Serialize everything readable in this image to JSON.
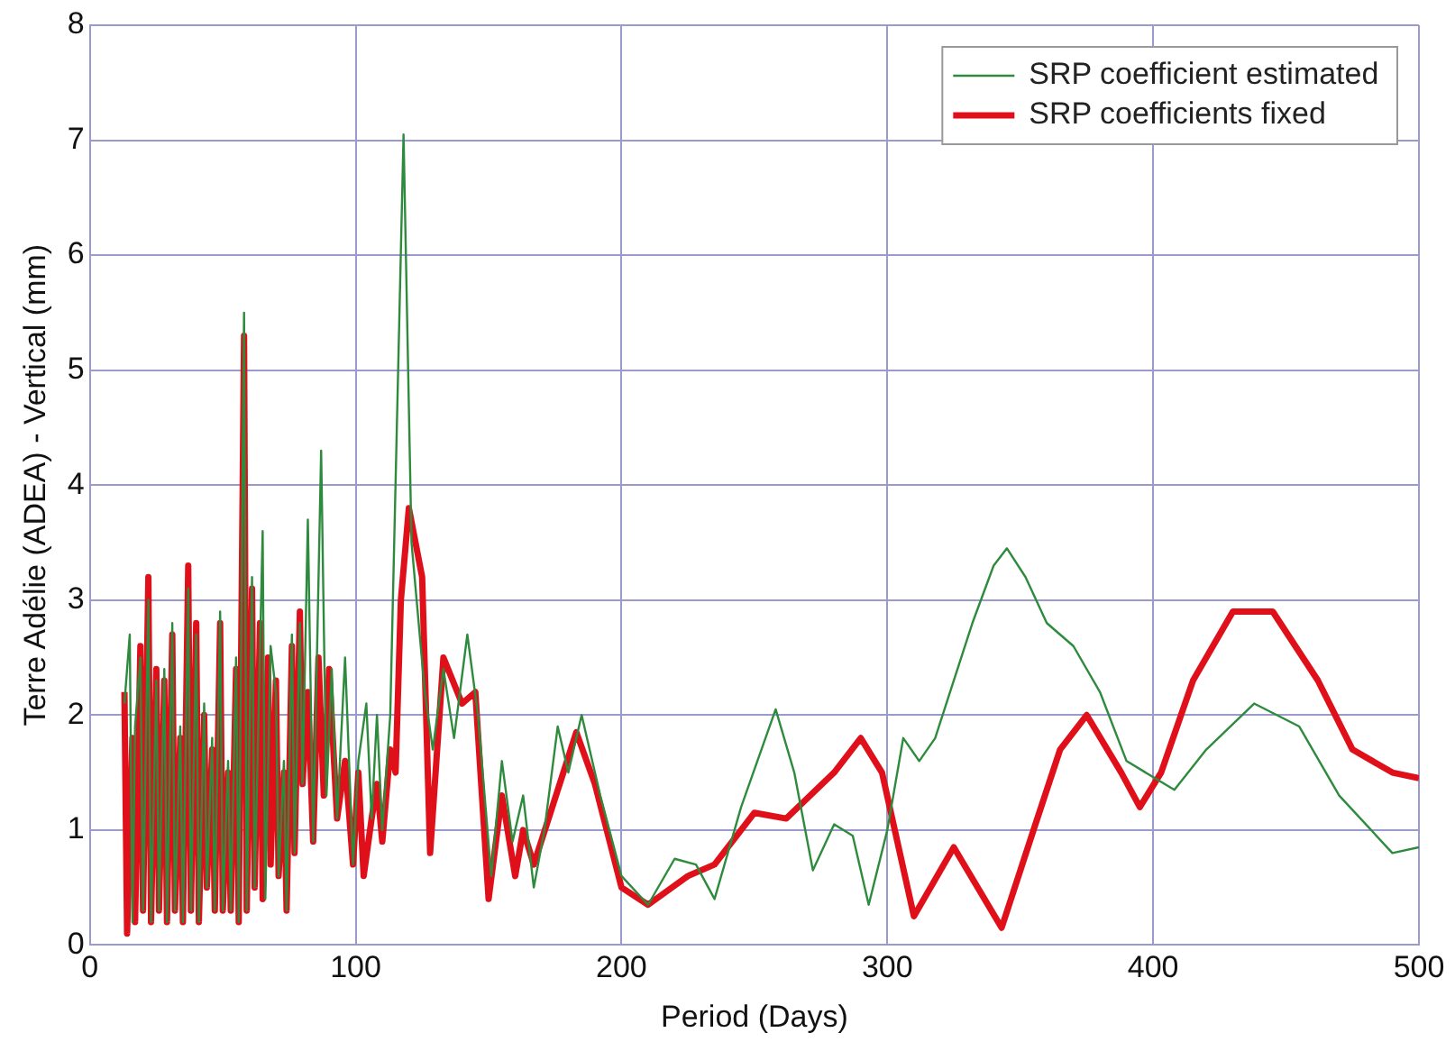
{
  "chart_data": {
    "type": "line",
    "xlabel": "Period (Days)",
    "ylabel": "Terre Adélie (ADEA) - Vertical (mm)",
    "xlim": [
      0,
      500
    ],
    "xticks": [
      0,
      100,
      200,
      300,
      400,
      500
    ],
    "ylim": [
      0,
      8
    ],
    "yticks": [
      0,
      1,
      2,
      3,
      4,
      5,
      6,
      7,
      8
    ],
    "grid": true,
    "legend": "top right",
    "marker": "none",
    "line_style": "solid",
    "series": [
      {
        "name": "SRP coefficient estimated",
        "color": "#2e8b3e",
        "x": [
          13,
          15,
          16,
          17,
          19,
          20,
          22,
          23,
          25,
          26,
          28,
          29,
          31,
          32,
          34,
          35,
          37,
          38,
          40,
          41,
          43,
          44,
          46,
          47,
          49,
          50,
          52,
          53,
          55,
          56,
          58,
          59,
          61,
          62,
          65,
          66,
          68,
          70,
          71,
          73,
          74,
          76,
          77,
          79,
          80,
          82,
          84,
          87,
          89,
          91,
          93,
          96,
          99,
          101,
          104,
          106,
          108,
          110,
          113,
          118,
          121,
          126,
          129,
          133,
          137,
          142,
          146,
          151,
          155,
          159,
          163,
          167,
          171,
          176,
          180,
          185,
          192,
          200,
          210,
          220,
          228,
          235,
          245,
          258,
          265,
          272,
          280,
          287,
          293,
          300,
          306,
          312,
          318,
          332,
          340,
          345,
          352,
          360,
          370,
          380,
          390,
          408,
          420,
          438,
          455,
          470,
          490,
          500
        ],
        "values": [
          2.1,
          2.7,
          0.2,
          1.9,
          2.5,
          0.3,
          3.0,
          0.2,
          2.3,
          0.3,
          2.4,
          0.2,
          2.8,
          0.3,
          1.9,
          0.2,
          3.1,
          0.3,
          2.7,
          0.2,
          2.1,
          0.5,
          1.8,
          0.3,
          2.9,
          0.3,
          1.6,
          0.3,
          2.5,
          0.2,
          5.5,
          0.3,
          3.2,
          0.5,
          3.6,
          0.4,
          2.6,
          2.2,
          0.6,
          1.6,
          0.3,
          2.7,
          0.8,
          2.8,
          1.4,
          3.7,
          0.9,
          4.3,
          1.3,
          2.4,
          1.1,
          2.5,
          0.7,
          1.6,
          2.1,
          1.1,
          2.0,
          1.0,
          2.0,
          7.05,
          3.5,
          2.2,
          1.7,
          2.4,
          1.8,
          2.7,
          2.0,
          0.6,
          1.6,
          0.9,
          1.3,
          0.5,
          1.0,
          1.9,
          1.5,
          2.0,
          1.3,
          0.6,
          0.35,
          0.75,
          0.7,
          0.4,
          1.2,
          2.05,
          1.5,
          0.65,
          1.05,
          0.95,
          0.35,
          1.0,
          1.8,
          1.6,
          1.8,
          2.8,
          3.3,
          3.45,
          3.2,
          2.8,
          2.6,
          2.2,
          1.6,
          1.35,
          1.7,
          2.1,
          1.9,
          1.3,
          0.8,
          0.85
        ]
      },
      {
        "name": "SRP coefficients fixed",
        "color": "#e0101a",
        "x": [
          13,
          14,
          16,
          17,
          19,
          20,
          22,
          23,
          25,
          26,
          28,
          29,
          31,
          32,
          34,
          35,
          37,
          38,
          40,
          41,
          43,
          44,
          46,
          47,
          49,
          50,
          52,
          53,
          55,
          56,
          58,
          59,
          61,
          62,
          64,
          65,
          67,
          68,
          70,
          71,
          73,
          74,
          76,
          77,
          79,
          80,
          82,
          84,
          86,
          88,
          90,
          93,
          96,
          99,
          101,
          103,
          106,
          108,
          110,
          113,
          115,
          117,
          120,
          125,
          128,
          133,
          140,
          145,
          150,
          155,
          160,
          163,
          167,
          183,
          190,
          200,
          210,
          225,
          235,
          250,
          262,
          280,
          290,
          298,
          310,
          325,
          343,
          355,
          365,
          375,
          388,
          395,
          403,
          415,
          430,
          445,
          462,
          475,
          490,
          500
        ],
        "values": [
          2.2,
          0.1,
          1.8,
          0.2,
          2.6,
          0.3,
          3.2,
          0.2,
          2.4,
          0.3,
          2.3,
          0.2,
          2.7,
          0.3,
          1.8,
          0.2,
          3.3,
          0.3,
          2.8,
          0.2,
          2.0,
          0.5,
          1.7,
          0.3,
          2.8,
          0.3,
          1.5,
          0.3,
          2.4,
          0.2,
          5.3,
          0.3,
          3.1,
          0.5,
          2.8,
          0.4,
          2.5,
          0.7,
          2.3,
          0.6,
          1.5,
          0.3,
          2.6,
          0.8,
          2.9,
          1.4,
          2.2,
          0.9,
          2.5,
          1.3,
          2.4,
          1.1,
          1.6,
          0.7,
          1.5,
          0.6,
          1.1,
          1.4,
          0.9,
          1.7,
          1.5,
          3.0,
          3.8,
          3.2,
          0.8,
          2.5,
          2.1,
          2.2,
          0.4,
          1.3,
          0.6,
          1.0,
          0.7,
          1.85,
          1.4,
          0.5,
          0.35,
          0.6,
          0.7,
          1.15,
          1.1,
          1.5,
          1.8,
          1.5,
          0.25,
          0.85,
          0.15,
          1.0,
          1.7,
          2.0,
          1.5,
          1.2,
          1.5,
          2.3,
          2.9,
          2.9,
          2.3,
          1.7,
          1.5,
          1.45
        ]
      }
    ]
  }
}
